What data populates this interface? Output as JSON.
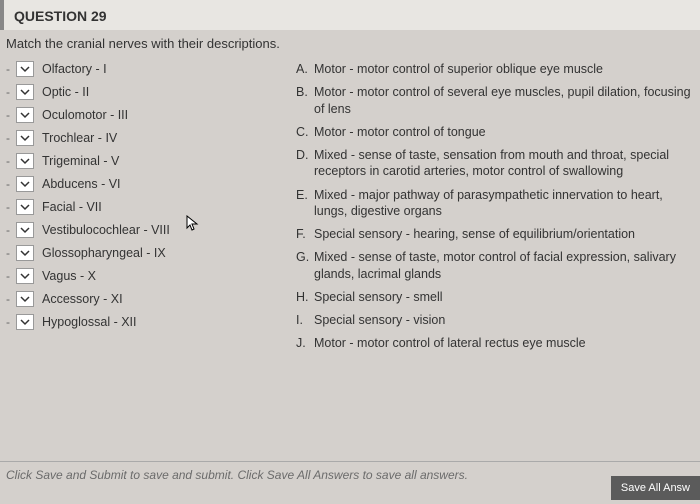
{
  "question": {
    "header": "QUESTION 29",
    "instruction": "Match the cranial nerves with their descriptions."
  },
  "nerves": [
    {
      "label": "Olfactory - I"
    },
    {
      "label": "Optic - II"
    },
    {
      "label": "Oculomotor - III"
    },
    {
      "label": "Trochlear - IV"
    },
    {
      "label": "Trigeminal - V"
    },
    {
      "label": "Abducens - VI"
    },
    {
      "label": "Facial - VII"
    },
    {
      "label": "Vestibulocochlear - VIII"
    },
    {
      "label": "Glossopharyngeal - IX"
    },
    {
      "label": "Vagus - X"
    },
    {
      "label": "Accessory - XI"
    },
    {
      "label": "Hypoglossal - XII"
    }
  ],
  "descriptions": [
    {
      "letter": "A.",
      "text": "Motor - motor control of superior oblique eye muscle"
    },
    {
      "letter": "B.",
      "text": "Motor - motor control of several eye muscles, pupil dilation, focusing of lens"
    },
    {
      "letter": "C.",
      "text": "Motor - motor control of tongue"
    },
    {
      "letter": "D.",
      "text": "Mixed - sense of taste, sensation from mouth and throat, special receptors in carotid arteries, motor control of swallowing"
    },
    {
      "letter": "E.",
      "text": "Mixed - major pathway of parasympathetic innervation to heart, lungs, digestive organs"
    },
    {
      "letter": "F.",
      "text": "Special sensory - hearing, sense of equilibrium/orientation"
    },
    {
      "letter": "G.",
      "text": "Mixed - sense of taste, motor control of facial expression, salivary glands, lacrimal glands"
    },
    {
      "letter": "H.",
      "text": "Special sensory - smell"
    },
    {
      "letter": "I.",
      "text": "Special sensory - vision"
    },
    {
      "letter": "J.",
      "text": "Motor - motor control of lateral rectus eye muscle"
    }
  ],
  "footer": {
    "note": "Click Save and Submit to save and submit. Click Save All Answers to save all answers.",
    "save_button": "Save All Answ"
  }
}
